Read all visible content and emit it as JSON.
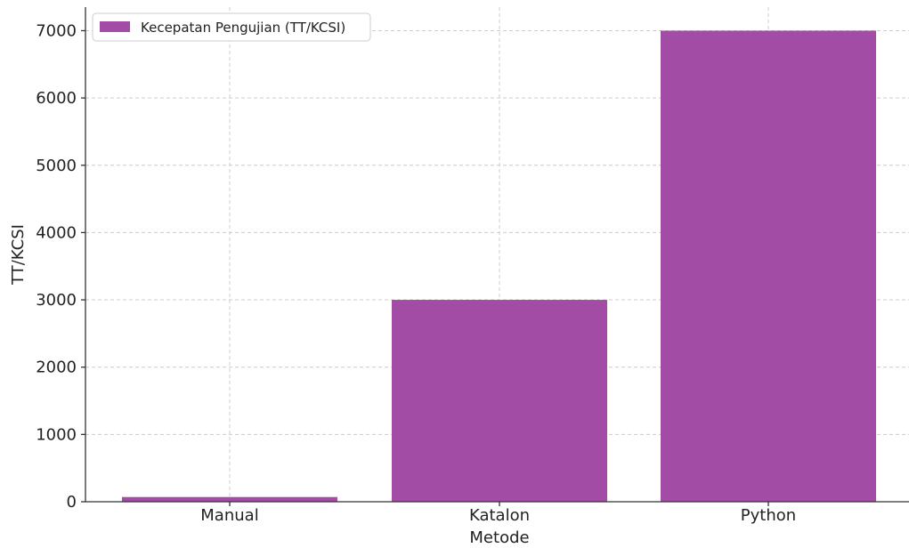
{
  "chart_data": {
    "type": "bar",
    "categories": [
      "Manual",
      "Katalon",
      "Python"
    ],
    "series": [
      {
        "name": "Kecepatan Pengujian (TT/KCSI)",
        "values": [
          70,
          3000,
          7000
        ]
      }
    ],
    "xlabel": "Metode",
    "ylabel": "TT/KCSI",
    "ylim": [
      0,
      7350
    ],
    "yticks": [
      0,
      1000,
      2000,
      3000,
      4000,
      5000,
      6000,
      7000
    ],
    "grid": true,
    "legend_position": "top-left",
    "bar_color": "#a24ca6"
  }
}
